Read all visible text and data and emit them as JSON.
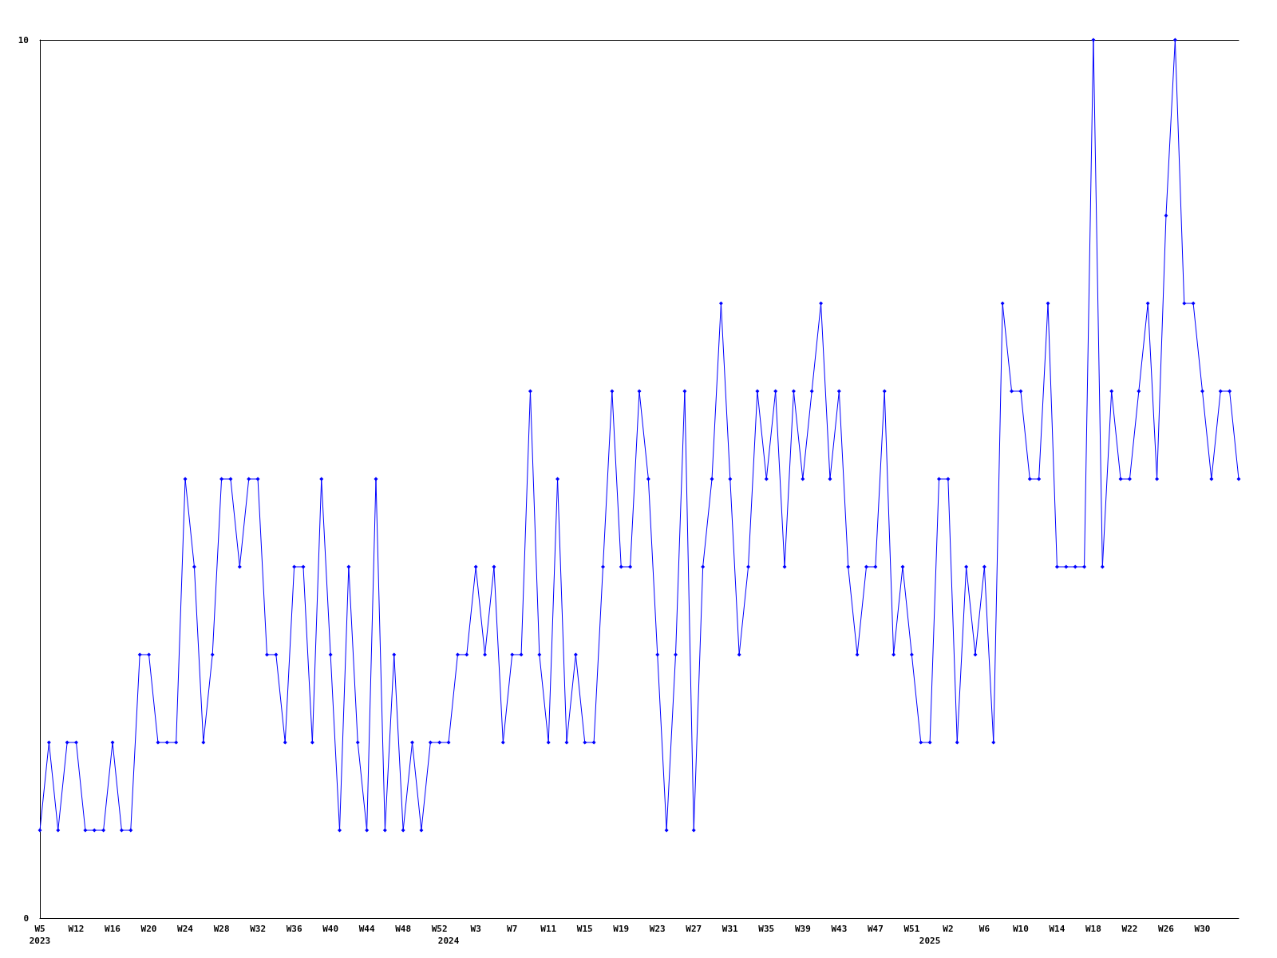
{
  "chart_data": {
    "type": "line",
    "categories": [
      "W5\n2023",
      null,
      null,
      null,
      "W12",
      null,
      null,
      null,
      "W16",
      null,
      null,
      null,
      "W20",
      null,
      null,
      null,
      "W24",
      null,
      null,
      null,
      "W28",
      null,
      null,
      null,
      "W32",
      null,
      null,
      null,
      "W36",
      null,
      null,
      null,
      "W40",
      null,
      null,
      null,
      "W44",
      null,
      null,
      null,
      "W48",
      null,
      null,
      null,
      "W52",
      "\n2024",
      null,
      null,
      "W3",
      null,
      null,
      null,
      "W7",
      null,
      null,
      null,
      "W11",
      null,
      null,
      null,
      "W15",
      null,
      null,
      null,
      "W19",
      null,
      null,
      null,
      "W23",
      null,
      null,
      null,
      "W27",
      null,
      null,
      null,
      "W31",
      null,
      null,
      null,
      "W35",
      null,
      null,
      null,
      "W39",
      null,
      null,
      null,
      "W43",
      null,
      null,
      null,
      "W47",
      null,
      null,
      null,
      "W51",
      null,
      "\n2025",
      null,
      "W2",
      null,
      null,
      null,
      "W6",
      null,
      null,
      null,
      "W10",
      null,
      null,
      null,
      "W14",
      null,
      null,
      null,
      "W18",
      null,
      null,
      null,
      "W22",
      null,
      null,
      null,
      "W26",
      null,
      null,
      null,
      "W30",
      null,
      null,
      null,
      null
    ],
    "series": [
      {
        "color": "#0000ff",
        "values": [
          1,
          2,
          1,
          2,
          2,
          1,
          1,
          1,
          2,
          1,
          1,
          3,
          3,
          2,
          2,
          2,
          5,
          4,
          2,
          3,
          5,
          5,
          4,
          5,
          5,
          3,
          3,
          2,
          4,
          4,
          2,
          5,
          3,
          1,
          4,
          2,
          1,
          5,
          1,
          3,
          1,
          2,
          1,
          2,
          2,
          2,
          3,
          3,
          4,
          3,
          4,
          2,
          3,
          3,
          6,
          3,
          2,
          5,
          2,
          3,
          2,
          2,
          4,
          6,
          4,
          4,
          6,
          5,
          3,
          1,
          3,
          6,
          1,
          4,
          5,
          7,
          5,
          3,
          4,
          6,
          5,
          6,
          4,
          6,
          5,
          6,
          7,
          5,
          6,
          4,
          3,
          4,
          4,
          6,
          3,
          4,
          3,
          2,
          2,
          5,
          5,
          2,
          4,
          3,
          4,
          2,
          7,
          6,
          6,
          5,
          5,
          7,
          4,
          4,
          4,
          4,
          10,
          4,
          6,
          5,
          5,
          6,
          7,
          5,
          8,
          10,
          7,
          7,
          6,
          5,
          6,
          6,
          5
        ]
      }
    ],
    "ylim": [
      0,
      10
    ],
    "yticks": [
      0,
      10
    ],
    "grid": false,
    "marker": "diamond",
    "line_style": "solid"
  }
}
